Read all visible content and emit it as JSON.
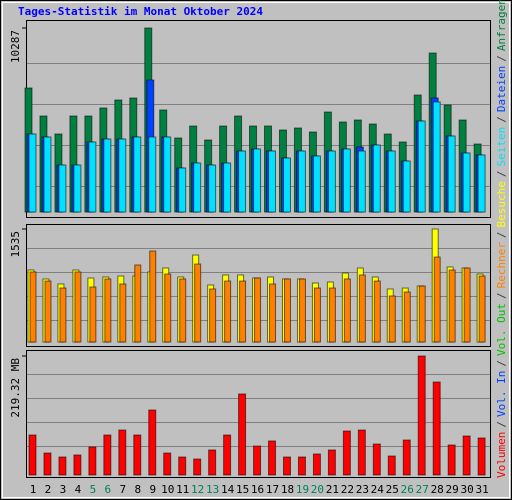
{
  "chart_data": [
    {
      "type": "bar",
      "title": "Tages-Statistik im Monat Oktober 2024",
      "ylim": [
        0,
        10287
      ],
      "yticks": [
        10287
      ],
      "series": [
        {
          "name": "Anfragen",
          "color": "#008040",
          "values": [
            6932,
            5367,
            4360,
            5367,
            5367,
            5814,
            6261,
            6373,
            10287,
            5702,
            4137,
            4808,
            4025,
            4808,
            5367,
            4808,
            4808,
            4584,
            4696,
            4472,
            5590,
            5031,
            5143,
            4919,
            4360,
            3913,
            6540,
            8888,
            5981,
            5143,
            3801
          ]
        },
        {
          "name": "Dateien",
          "color": "#0040ff",
          "values": [
            4360,
            4193,
            2627,
            2627,
            3913,
            4081,
            4081,
            4193,
            7379,
            4193,
            2460,
            2739,
            2627,
            2739,
            3410,
            3522,
            3410,
            3019,
            3410,
            3130,
            3410,
            3522,
            3634,
            3745,
            3410,
            2851,
            5087,
            6373,
            4248,
            3298,
            3186
          ]
        },
        {
          "name": "Seiten",
          "color": "#00e0ff",
          "values": [
            4360,
            4193,
            2627,
            2627,
            3913,
            4081,
            4081,
            4193,
            4193,
            4193,
            2460,
            2739,
            2627,
            2739,
            3410,
            3522,
            3410,
            3019,
            3410,
            3130,
            3410,
            3522,
            3410,
            3745,
            3410,
            2851,
            5087,
            6149,
            4248,
            3298,
            3186
          ]
        }
      ]
    },
    {
      "type": "bar",
      "ylim": [
        0,
        1535
      ],
      "yticks": [
        1535
      ],
      "series": [
        {
          "name": "Besuche",
          "color": "#ffff00",
          "values": [
            978,
            856,
            788,
            978,
            869,
            883,
            896,
            896,
            951,
            1005,
            883,
            1181,
            774,
            910,
            910,
            869,
            883,
            856,
            856,
            801,
            815,
            937,
            1005,
            883,
            720,
            733,
            760,
            1535,
            1019,
            1005,
            923
          ]
        },
        {
          "name": "Rechner",
          "color": "#ff8000",
          "values": [
            951,
            828,
            733,
            951,
            747,
            856,
            788,
            1046,
            1236,
            923,
            856,
            1059,
            720,
            828,
            828,
            869,
            788,
            856,
            856,
            733,
            733,
            856,
            910,
            828,
            625,
            679,
            760,
            1154,
            978,
            1005,
            896
          ]
        }
      ]
    },
    {
      "type": "bar",
      "ylim": [
        0,
        219.32
      ],
      "yticks": [
        {
          "value": 219.32,
          "label": "219.32 MB"
        }
      ],
      "categories": [
        "1",
        "2",
        "3",
        "4",
        "5",
        "6",
        "7",
        "8",
        "9",
        "10",
        "11",
        "12",
        "13",
        "14",
        "15",
        "16",
        "17",
        "18",
        "19",
        "20",
        "21",
        "22",
        "23",
        "24",
        "25",
        "26",
        "27",
        "28",
        "29",
        "30",
        "31"
      ],
      "category_colors": [
        "#000",
        "#000",
        "#000",
        "#000",
        "#00805c",
        "#00805c",
        "#000",
        "#000",
        "#000",
        "#000",
        "#000",
        "#00805c",
        "#00805c",
        "#000",
        "#000",
        "#000",
        "#000",
        "#000",
        "#00805c",
        "#00805c",
        "#000",
        "#000",
        "#000",
        "#000",
        "#000",
        "#00805c",
        "#00805c",
        "#000",
        "#000",
        "#000",
        "#000"
      ],
      "series": [
        {
          "name": "Volumen",
          "color": "#ff0000",
          "values": [
            73.7,
            40.5,
            33.2,
            36.9,
            51.6,
            73.7,
            82.9,
            73.7,
            119.8,
            40.5,
            33.2,
            29.5,
            46.1,
            73.7,
            149.3,
            53.4,
            62.7,
            33.2,
            33.2,
            38.7,
            46.1,
            81.1,
            82.9,
            57.1,
            35.0,
            64.5,
            219.32,
            171.4,
            55.3,
            71.9,
            68.2
          ]
        }
      ]
    }
  ],
  "legend": {
    "separator": "/",
    "extra": [
      {
        "name": "Vol. In",
        "color": "#0040ff"
      },
      {
        "name": "Vol. Out",
        "color": "#00c000"
      }
    ]
  }
}
